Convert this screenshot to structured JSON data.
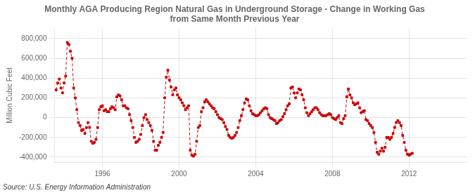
{
  "chart_data": {
    "type": "line",
    "title": "Monthly AGA Producing Region Natural Gas in Underground Storage - Change in Working Gas\nfrom Same Month Previous Year",
    "ylabel": "Million Cubic Feet",
    "annotations": [
      "Source: U.S. Energy Information Administration"
    ],
    "color": "#CC0000",
    "marker": "square",
    "line_style": "dashed",
    "grid": true,
    "xlim": [
      1993.5,
      2015.0
    ],
    "xticks": [
      1996,
      2000,
      2004,
      2008,
      2012
    ],
    "ylim": [
      -450000,
      900000
    ],
    "yticks": [
      {
        "value": -400000,
        "label": "-400,000"
      },
      {
        "value": -200000,
        "label": "-200,000"
      },
      0,
      {
        "value": 200000,
        "label": "200,000"
      },
      {
        "value": 400000,
        "label": "400,000"
      },
      {
        "value": 600000,
        "label": "600,000"
      },
      {
        "value": 800000,
        "label": "800,000"
      }
    ],
    "x": [
      1993.583333,
      1993.666667,
      1993.75,
      1993.833333,
      1993.916667,
      1994,
      1994.083333,
      1994.166667,
      1994.25,
      1994.333333,
      1994.416667,
      1994.5,
      1994.583333,
      1994.666667,
      1994.75,
      1994.833333,
      1994.916667,
      1995,
      1995.083333,
      1995.166667,
      1995.25,
      1995.333333,
      1995.416667,
      1995.5,
      1995.583333,
      1995.666667,
      1995.75,
      1995.833333,
      1995.916667,
      1996,
      1996.083333,
      1996.166667,
      1996.25,
      1996.333333,
      1996.416667,
      1996.5,
      1996.583333,
      1996.666667,
      1996.75,
      1996.833333,
      1996.916667,
      1997,
      1997.083333,
      1997.166667,
      1997.25,
      1997.333333,
      1997.416667,
      1997.5,
      1997.583333,
      1997.666667,
      1997.75,
      1997.833333,
      1997.916667,
      1998,
      1998.083333,
      1998.166667,
      1998.25,
      1998.333333,
      1998.416667,
      1998.5,
      1998.583333,
      1998.666667,
      1998.75,
      1998.833333,
      1998.916667,
      1999,
      1999.083333,
      1999.166667,
      1999.25,
      1999.333333,
      1999.416667,
      1999.5,
      1999.583333,
      1999.666667,
      1999.75,
      1999.833333,
      1999.916667,
      2000,
      2000.083333,
      2000.166667,
      2000.25,
      2000.333333,
      2000.416667,
      2000.5,
      2000.583333,
      2000.666667,
      2000.75,
      2000.833333,
      2000.916667,
      2001,
      2001.083333,
      2001.166667,
      2001.25,
      2001.333333,
      2001.416667,
      2001.5,
      2001.583333,
      2001.666667,
      2001.75,
      2001.833333,
      2001.916667,
      2002,
      2002.083333,
      2002.166667,
      2002.25,
      2002.333333,
      2002.416667,
      2002.5,
      2002.583333,
      2002.666667,
      2002.75,
      2002.833333,
      2002.916667,
      2003,
      2003.083333,
      2003.166667,
      2003.25,
      2003.333333,
      2003.416667,
      2003.5,
      2003.583333,
      2003.666667,
      2003.75,
      2003.833333,
      2003.916667,
      2004,
      2004.083333,
      2004.166667,
      2004.25,
      2004.333333,
      2004.416667,
      2004.5,
      2004.583333,
      2004.666667,
      2004.75,
      2004.833333,
      2004.916667,
      2005,
      2005.083333,
      2005.166667,
      2005.25,
      2005.333333,
      2005.416667,
      2005.5,
      2005.583333,
      2005.666667,
      2005.75,
      2005.833333,
      2005.916667,
      2006,
      2006.083333,
      2006.166667,
      2006.25,
      2006.333333,
      2006.416667,
      2006.5,
      2006.583333,
      2006.666667,
      2006.75,
      2006.833333,
      2006.916667,
      2007,
      2007.083333,
      2007.166667,
      2007.25,
      2007.333333,
      2007.416667,
      2007.5,
      2007.583333,
      2007.666667,
      2007.75,
      2007.833333,
      2007.916667,
      2008,
      2008.083333,
      2008.166667,
      2008.25,
      2008.333333,
      2008.416667,
      2008.5,
      2008.583333,
      2008.666667,
      2008.75,
      2008.833333,
      2008.916667,
      2009,
      2009.083333,
      2009.166667,
      2009.25,
      2009.333333,
      2009.416667,
      2009.5,
      2009.583333,
      2009.666667,
      2009.75,
      2009.833333,
      2009.916667,
      2010,
      2010.083333,
      2010.166667,
      2010.25,
      2010.333333,
      2010.416667,
      2010.5,
      2010.583333,
      2010.666667,
      2010.75,
      2010.833333,
      2010.916667,
      2011,
      2011.083333,
      2011.166667,
      2011.25,
      2011.333333,
      2011.416667,
      2011.5,
      2011.583333,
      2011.666667,
      2011.75,
      2011.833333,
      2011.916667,
      2012,
      2012.083333,
      2012.166667
    ],
    "values": [
      280000,
      350000,
      390000,
      300000,
      250000,
      350000,
      420000,
      760000,
      740000,
      670000,
      600000,
      300000,
      200000,
      80000,
      -50000,
      -80000,
      -130000,
      -120000,
      -160000,
      -100000,
      -50000,
      -100000,
      -240000,
      -260000,
      -250000,
      -220000,
      -100000,
      80000,
      110000,
      120000,
      70000,
      80000,
      60000,
      60000,
      90000,
      110000,
      100000,
      80000,
      210000,
      230000,
      220000,
      180000,
      120000,
      120000,
      100000,
      90000,
      30000,
      -30000,
      -100000,
      -200000,
      -250000,
      -240000,
      -220000,
      -170000,
      -80000,
      0,
      30000,
      -20000,
      -50000,
      -80000,
      -130000,
      -240000,
      -330000,
      -330000,
      -280000,
      -250000,
      -200000,
      -150000,
      200000,
      410000,
      480000,
      380000,
      310000,
      230000,
      280000,
      300000,
      230000,
      200000,
      180000,
      150000,
      120000,
      80000,
      100000,
      120000,
      -330000,
      -380000,
      -390000,
      -370000,
      -240000,
      -100000,
      -80000,
      60000,
      100000,
      160000,
      180000,
      160000,
      140000,
      120000,
      100000,
      90000,
      60000,
      30000,
      0,
      -10000,
      -20000,
      -50000,
      -90000,
      -120000,
      -180000,
      -200000,
      -210000,
      -200000,
      -180000,
      -150000,
      -100000,
      -30000,
      20000,
      80000,
      150000,
      190000,
      180000,
      120000,
      70000,
      40000,
      30000,
      20000,
      20000,
      30000,
      50000,
      70000,
      90000,
      100000,
      90000,
      30000,
      0,
      -10000,
      -20000,
      -30000,
      -60000,
      -50000,
      -30000,
      -20000,
      10000,
      40000,
      80000,
      120000,
      140000,
      300000,
      310000,
      250000,
      200000,
      250000,
      290000,
      280000,
      230000,
      180000,
      100000,
      50000,
      20000,
      40000,
      60000,
      80000,
      100000,
      100000,
      80000,
      50000,
      30000,
      20000,
      20000,
      20000,
      30000,
      40000,
      30000,
      0,
      -10000,
      -20000,
      0,
      20000,
      -50000,
      -60000,
      -10000,
      20000,
      210000,
      290000,
      230000,
      200000,
      150000,
      130000,
      140000,
      150000,
      100000,
      50000,
      60000,
      70000,
      -20000,
      -30000,
      -60000,
      -80000,
      -100000,
      -150000,
      -250000,
      -350000,
      -370000,
      -340000,
      -310000,
      -340000,
      -300000,
      -200000,
      -200000,
      -220000,
      -200000,
      -160000,
      -100000,
      -50000,
      -30000,
      -50000,
      -80000,
      -180000,
      -250000,
      -330000,
      -370000,
      -380000,
      -370000,
      -360000
    ]
  }
}
